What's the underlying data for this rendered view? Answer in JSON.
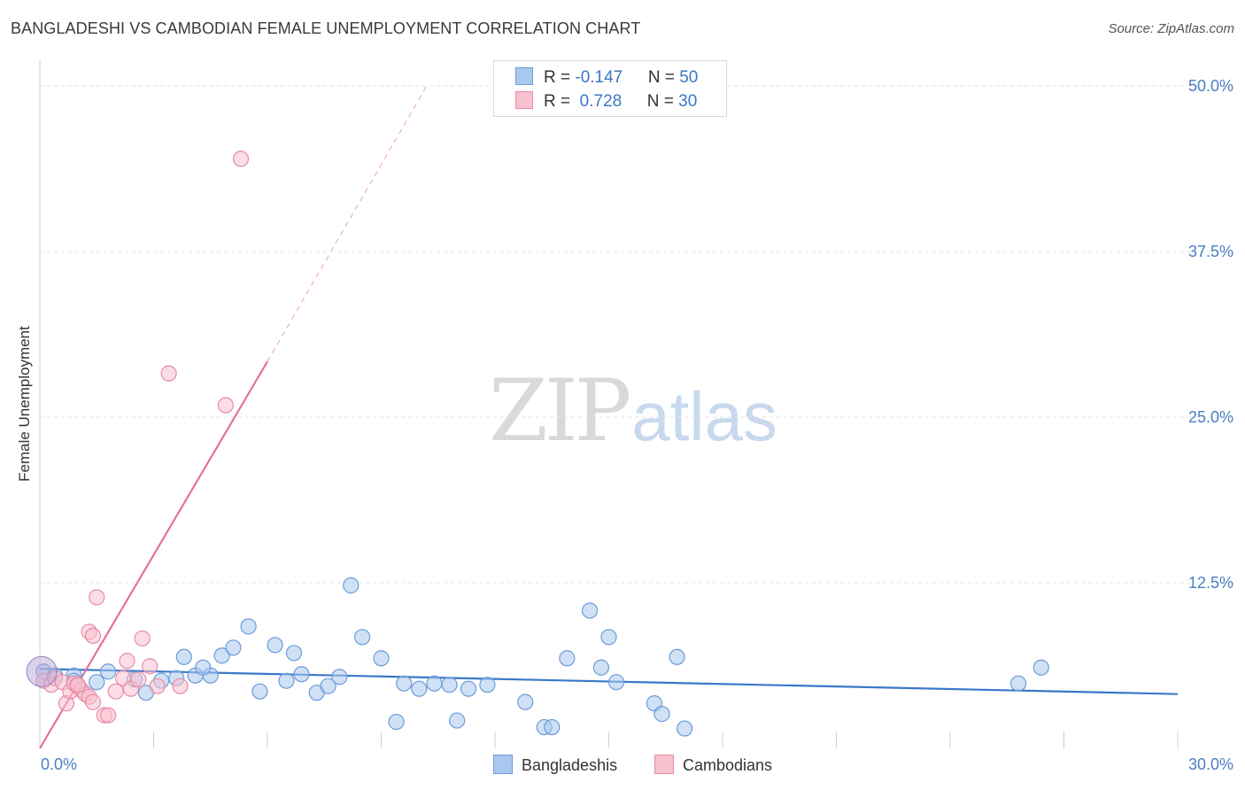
{
  "header": {
    "title": "BANGLADESHI VS CAMBODIAN FEMALE UNEMPLOYMENT CORRELATION CHART",
    "source": "Source: ZipAtlas.com"
  },
  "watermark": {
    "zip": "ZIP",
    "atlas": "atlas"
  },
  "legend": {
    "rows": [
      {
        "r_label": "R = ",
        "r_value": "-0.147",
        "n_label": "N = ",
        "n_value": "50",
        "color": "#a9c8ef",
        "border": "#6a9bd8"
      },
      {
        "r_label": "R = ",
        "r_value": " 0.728",
        "n_label": "N = ",
        "n_value": "30",
        "color": "#f7c1d0",
        "border": "#e98aa6"
      }
    ]
  },
  "bottom_legend": [
    {
      "label": "Bangladeshis",
      "color": "#a9c8ef",
      "border": "#6a9bd8"
    },
    {
      "label": "Cambodians",
      "color": "#f7c1d0",
      "border": "#e98aa6"
    }
  ],
  "chart_data": {
    "type": "scatter",
    "title": "BANGLADESHI VS CAMBODIAN FEMALE UNEMPLOYMENT CORRELATION CHART",
    "xlabel": "",
    "ylabel": "Female Unemployment",
    "xlim": [
      0,
      30
    ],
    "ylim": [
      0,
      50
    ],
    "x_tick_labels": [
      "0.0%",
      "30.0%"
    ],
    "y_ticks": [
      12.5,
      25.0,
      37.5,
      50.0
    ],
    "y_tick_labels": [
      "12.5%",
      "25.0%",
      "37.5%",
      "50.0%"
    ],
    "grid": true,
    "series": [
      {
        "name": "Bangladeshis",
        "color": "#6a9bd8",
        "fill": "#a9c8ef",
        "r": -0.147,
        "n": 50,
        "trend": {
          "x": [
            0,
            30
          ],
          "y": [
            6.0,
            4.1
          ],
          "dashed_to": null
        },
        "points": [
          [
            0.1,
            5.8
          ],
          [
            0.4,
            5.5
          ],
          [
            0.9,
            5.5
          ],
          [
            1.5,
            5.0
          ],
          [
            1.8,
            5.8
          ],
          [
            2.5,
            5.2
          ],
          [
            2.8,
            4.2
          ],
          [
            3.2,
            5.1
          ],
          [
            3.6,
            5.3
          ],
          [
            3.8,
            6.9
          ],
          [
            4.1,
            5.5
          ],
          [
            4.5,
            5.5
          ],
          [
            4.8,
            7.0
          ],
          [
            5.1,
            7.6
          ],
          [
            5.5,
            9.2
          ],
          [
            5.8,
            4.3
          ],
          [
            6.2,
            7.8
          ],
          [
            6.5,
            5.1
          ],
          [
            6.7,
            7.2
          ],
          [
            6.9,
            5.6
          ],
          [
            7.3,
            4.2
          ],
          [
            7.6,
            4.7
          ],
          [
            7.9,
            5.4
          ],
          [
            8.2,
            12.3
          ],
          [
            8.5,
            8.4
          ],
          [
            9.0,
            6.8
          ],
          [
            9.4,
            2.0
          ],
          [
            9.6,
            4.9
          ],
          [
            10.0,
            4.5
          ],
          [
            10.4,
            4.9
          ],
          [
            10.8,
            4.8
          ],
          [
            11.0,
            2.1
          ],
          [
            11.3,
            4.5
          ],
          [
            11.8,
            4.8
          ],
          [
            12.8,
            3.5
          ],
          [
            13.3,
            1.6
          ],
          [
            13.5,
            1.6
          ],
          [
            13.9,
            6.8
          ],
          [
            14.5,
            10.4
          ],
          [
            14.8,
            6.1
          ],
          [
            15.0,
            8.4
          ],
          [
            15.2,
            5.0
          ],
          [
            16.2,
            3.4
          ],
          [
            16.4,
            2.6
          ],
          [
            16.8,
            6.9
          ],
          [
            17.0,
            1.5
          ],
          [
            25.8,
            4.9
          ],
          [
            26.4,
            6.1
          ],
          [
            4.3,
            6.1
          ],
          [
            0.9,
            5.1
          ]
        ]
      },
      {
        "name": "Cambodians",
        "color": "#e98aa6",
        "fill": "#f7c1d0",
        "r": 0.728,
        "n": 30,
        "trend": {
          "x": [
            0,
            6.0
          ],
          "y": [
            0,
            29.2
          ],
          "dashed_x": [
            6.0,
            10.2
          ],
          "dashed_y": [
            29.2,
            50.0
          ]
        },
        "points": [
          [
            0.1,
            5.1
          ],
          [
            0.3,
            4.8
          ],
          [
            0.4,
            5.3
          ],
          [
            0.6,
            5.0
          ],
          [
            0.7,
            3.4
          ],
          [
            0.8,
            4.3
          ],
          [
            0.9,
            4.9
          ],
          [
            1.0,
            4.7
          ],
          [
            1.1,
            4.4
          ],
          [
            1.2,
            4.1
          ],
          [
            1.3,
            3.9
          ],
          [
            1.4,
            3.5
          ],
          [
            1.3,
            8.8
          ],
          [
            1.4,
            8.5
          ],
          [
            1.5,
            11.4
          ],
          [
            1.7,
            2.5
          ],
          [
            1.8,
            2.5
          ],
          [
            2.0,
            4.3
          ],
          [
            2.2,
            5.3
          ],
          [
            2.3,
            6.6
          ],
          [
            2.4,
            4.5
          ],
          [
            2.6,
            5.2
          ],
          [
            2.7,
            8.3
          ],
          [
            2.9,
            6.2
          ],
          [
            3.1,
            4.7
          ],
          [
            3.4,
            28.3
          ],
          [
            3.7,
            4.7
          ],
          [
            4.9,
            25.9
          ],
          [
            5.3,
            44.5
          ],
          [
            1.0,
            4.8
          ]
        ]
      }
    ]
  }
}
